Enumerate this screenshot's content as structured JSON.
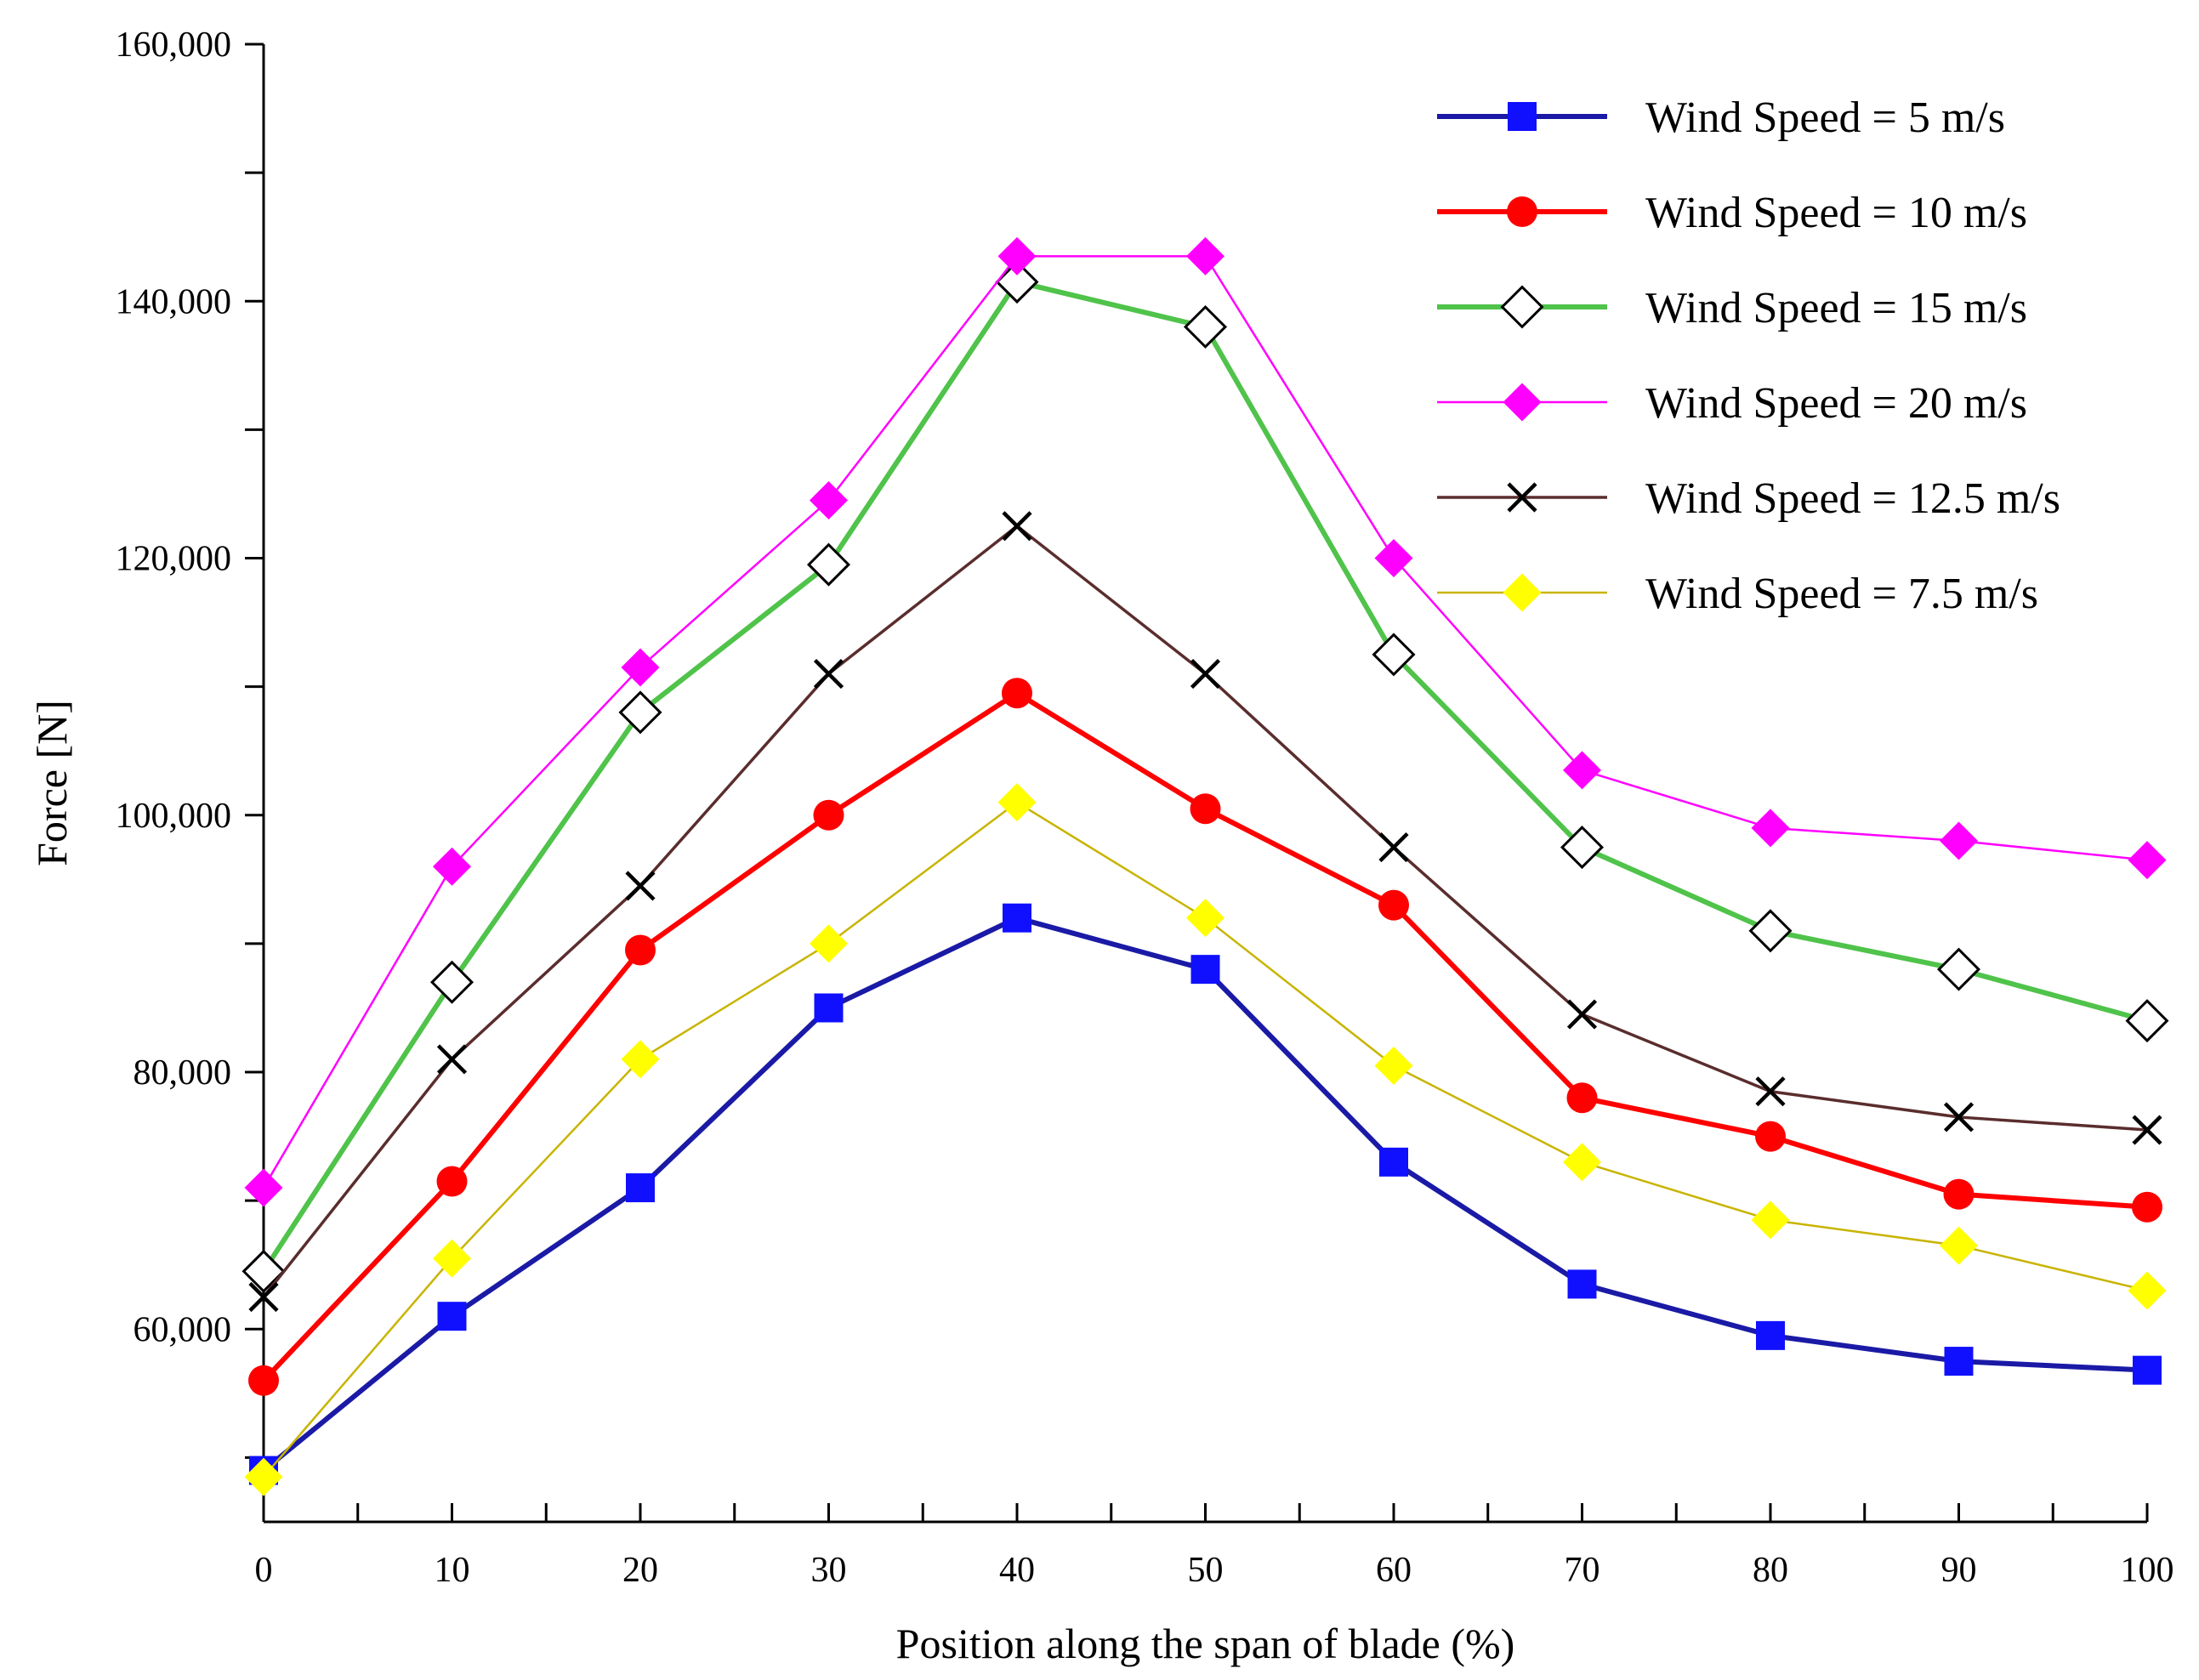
{
  "chart_data": {
    "type": "line",
    "title": "",
    "xlabel": "Position along the span of blade (%)",
    "ylabel": "Force [N]",
    "xlim": [
      0,
      100
    ],
    "ylim": [
      45000,
      160000
    ],
    "x": [
      0,
      10,
      20,
      30,
      40,
      50,
      60,
      70,
      80,
      90,
      100
    ],
    "x_tick_labels": [
      "0",
      "10",
      "20",
      "30",
      "40",
      "50",
      "60",
      "70",
      "80",
      "90",
      "100"
    ],
    "y_tick_values": [
      60000,
      80000,
      100000,
      120000,
      140000,
      160000
    ],
    "y_tick_labels": [
      "60,000",
      "80,000",
      "100,000",
      "120,000",
      "140,000",
      "160,000"
    ],
    "grid": false,
    "legend_position": "top-right",
    "series": [
      {
        "name": "Wind Speed = 5 m/s",
        "color": "#1a1aa6",
        "marker": "square",
        "marker_color": "#1010ff",
        "values": [
          49000,
          61000,
          71000,
          85000,
          92000,
          88000,
          73000,
          63500,
          59500,
          57500,
          56800
        ]
      },
      {
        "name": "Wind Speed = 10 m/s",
        "color": "#ff0000",
        "marker": "circle",
        "marker_color": "#ff0000",
        "values": [
          56000,
          71500,
          89500,
          100000,
          109500,
          100500,
          93000,
          78000,
          75000,
          70500,
          69500
        ]
      },
      {
        "name": "Wind Speed = 15 m/s",
        "color": "#4fc34a",
        "marker": "diamond-open",
        "marker_color": "#000000",
        "values": [
          64500,
          87000,
          108000,
          119500,
          141500,
          138000,
          112500,
          97500,
          91000,
          88000,
          84000
        ]
      },
      {
        "name": "Wind Speed = 20 m/s",
        "color": "#ff00ff",
        "marker": "diamond",
        "marker_color": "#ff00ff",
        "values": [
          71000,
          96000,
          111500,
          124500,
          143500,
          143500,
          120000,
          103500,
          99000,
          98000,
          96500
        ]
      },
      {
        "name": "Wind Speed = 12.5 m/s",
        "color": "#5a2d2d",
        "marker": "x",
        "marker_color": "#000000",
        "values": [
          62500,
          81000,
          94500,
          111000,
          122500,
          111000,
          97500,
          84500,
          78500,
          76500,
          75500
        ]
      },
      {
        "name": "Wind Speed = 7.5 m/s",
        "color": "#c8b400",
        "marker": "diamond",
        "marker_color": "#ffff00",
        "values": [
          48500,
          65500,
          81000,
          90000,
          101000,
          92000,
          80500,
          73000,
          68500,
          66500,
          63000
        ]
      }
    ]
  }
}
